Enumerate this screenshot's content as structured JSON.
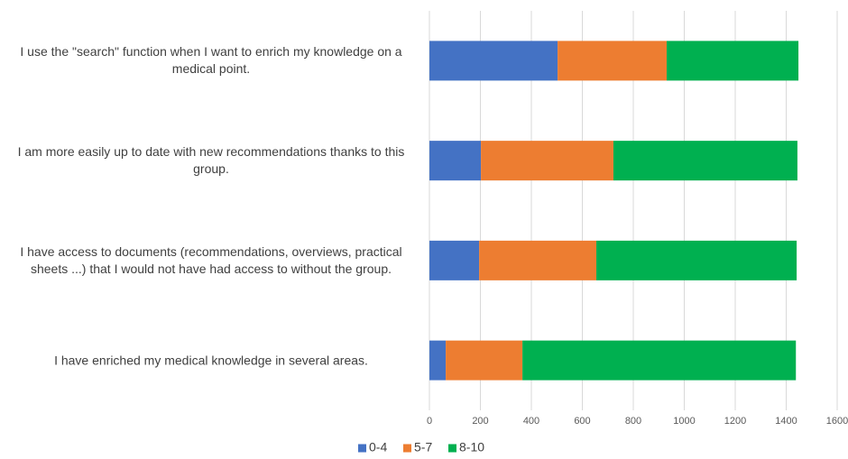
{
  "chart_data": {
    "type": "bar",
    "orientation": "horizontal",
    "stacked": true,
    "categories": [
      "I use the \"search\" function when I want to enrich my knowledge on a medical point.",
      "I am more easily up to date with new recommendations thanks to this group.",
      "I have access to documents (recommendations, overviews, practical sheets ...) that I would not have had access to without the group.",
      "I have enriched my medical knowledge in several areas."
    ],
    "series": [
      {
        "name": "0-4",
        "color": "#4472c4",
        "values": [
          503,
          202,
          195,
          64
        ]
      },
      {
        "name": "5-7",
        "color": "#ed7d31",
        "values": [
          428,
          520,
          460,
          301
        ]
      },
      {
        "name": "8-10",
        "color": "#00b050",
        "values": [
          517,
          722,
          786,
          1073
        ]
      }
    ],
    "xlim": [
      0,
      1600
    ],
    "xticks": [
      0,
      200,
      400,
      600,
      800,
      1000,
      1200,
      1400,
      1600
    ],
    "grid": true,
    "legend": "bottom"
  }
}
